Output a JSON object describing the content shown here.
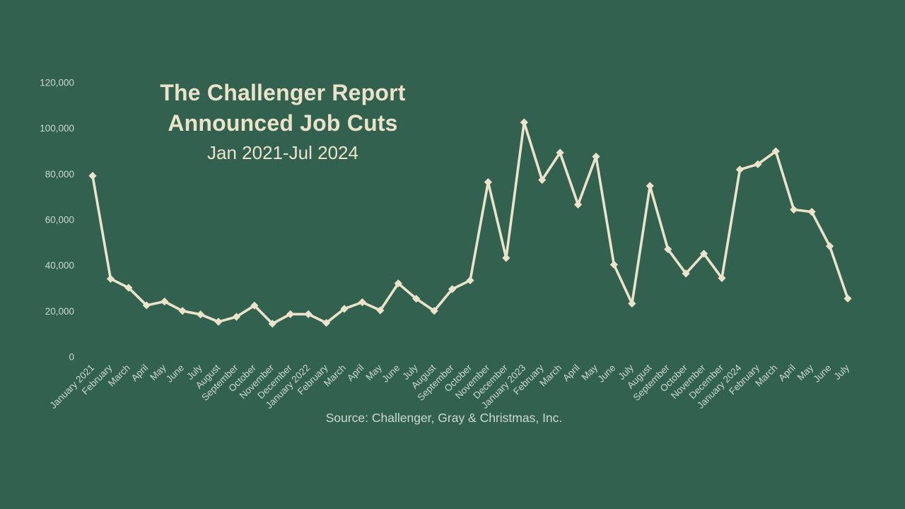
{
  "title": {
    "line1": "The Challenger Report",
    "line2": "Announced Job Cuts",
    "subtitle": "Jan 2021-Jul 2024"
  },
  "source": "Source: Challenger, Gray & Christmas, Inc.",
  "colors": {
    "background": "#33614f",
    "line": "#ece4ca",
    "marker": "#ece4ca",
    "title_text": "#ebe3c9",
    "axis_text": "#c9d9cc",
    "source_text": "#c9d9cc"
  },
  "chart_data": {
    "type": "line",
    "title": "The Challenger Report Announced Job Cuts",
    "subtitle": "Jan 2021-Jul 2024",
    "source": "Source: Challenger, Gray & Christmas, Inc.",
    "grid": false,
    "legend": false,
    "marker": "diamond",
    "x_label_rotation": 45,
    "ylim": [
      0,
      120000
    ],
    "y_tick_values": [
      0,
      20000,
      40000,
      60000,
      80000,
      100000,
      120000
    ],
    "y_tick_labels": [
      "0",
      "20,000",
      "40,000",
      "60,000",
      "80,000",
      "100,000",
      "120,000"
    ],
    "categories": [
      "January 2021",
      "February",
      "March",
      "April",
      "May",
      "June",
      "July",
      "August",
      "September",
      "October",
      "November",
      "December",
      "January 2022",
      "February",
      "March",
      "April",
      "May",
      "June",
      "July",
      "August",
      "September",
      "October",
      "November",
      "December",
      "January 2023",
      "February",
      "March",
      "April",
      "May",
      "June",
      "July",
      "August",
      "September",
      "October",
      "November",
      "December",
      "January 2024",
      "February",
      "March",
      "April",
      "May",
      "June",
      "July"
    ],
    "series": [
      {
        "name": "Announced Job Cuts",
        "values": [
          79552,
          34531,
          30603,
          22913,
          24586,
          20476,
          18942,
          15723,
          17895,
          22822,
          14875,
          19052,
          19064,
          15245,
          21387,
          24286,
          20712,
          32517,
          25810,
          20485,
          29989,
          33843,
          76835,
          43651,
          102943,
          77770,
          89703,
          66995,
          88000,
          40709,
          23697,
          75151,
          47457,
          36836,
          45510,
          34817,
          82307,
          84638,
          90309,
          64789,
          63816,
          48786,
          25885
        ]
      }
    ]
  }
}
